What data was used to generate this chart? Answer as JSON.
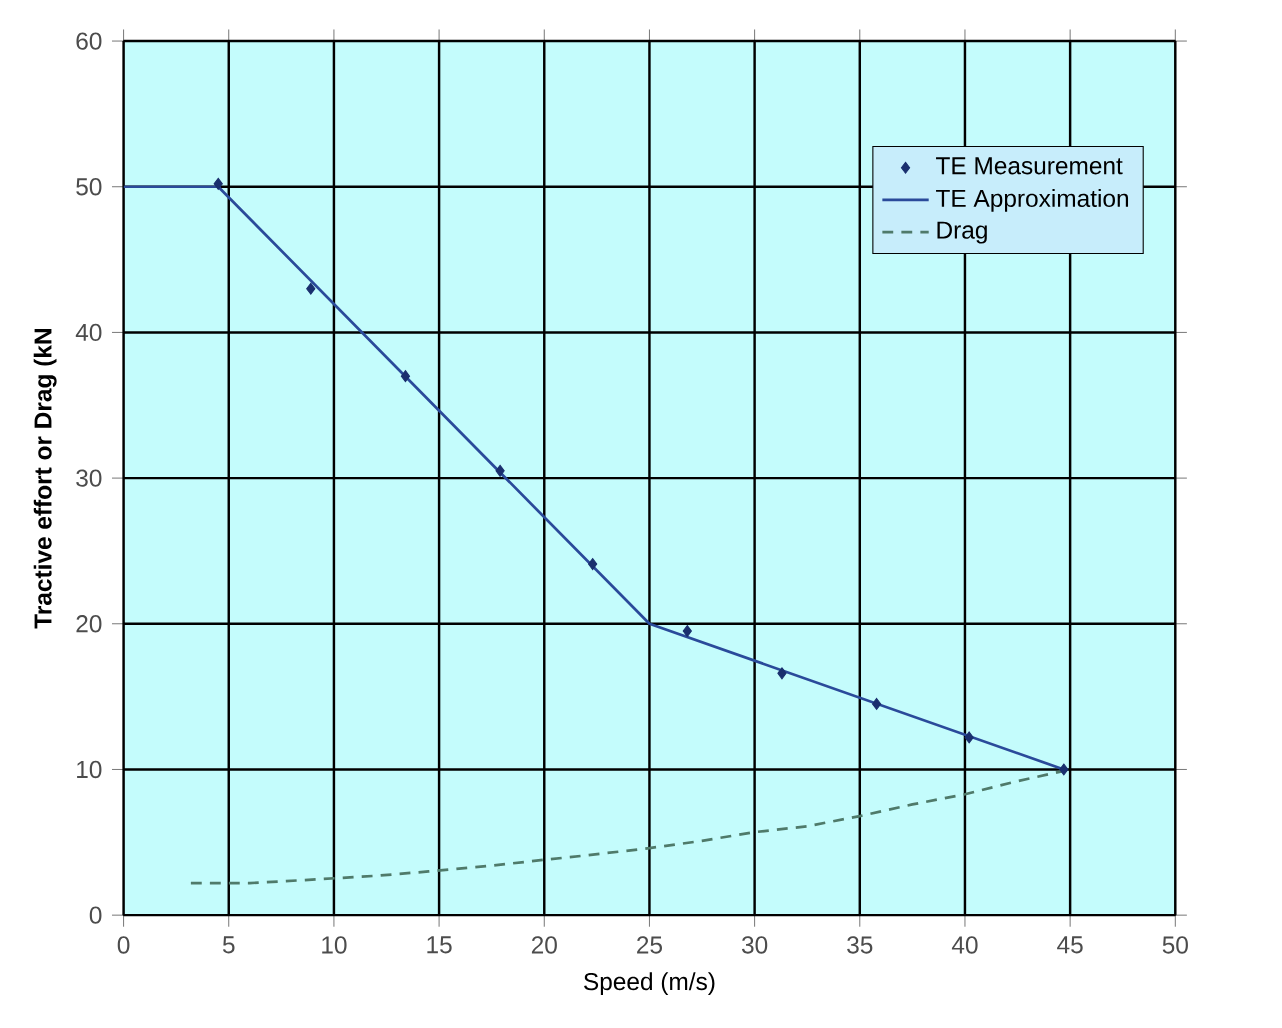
{
  "chart_data": {
    "type": "line",
    "xlabel": "Speed (m/s)",
    "ylabel": "Tractive effort or Drag (kN",
    "xlim": [
      0,
      50
    ],
    "ylim": [
      0,
      60
    ],
    "xticks": [
      0,
      5,
      10,
      15,
      20,
      25,
      30,
      35,
      40,
      45,
      50
    ],
    "yticks": [
      0,
      10,
      20,
      30,
      40,
      50,
      60
    ],
    "grid": true,
    "legend": "top right",
    "series": [
      {
        "name": "TE Measurement",
        "type": "scatter",
        "marker": "diamond",
        "color": "#1a2f6e",
        "x": [
          4.5,
          8.9,
          13.4,
          17.9,
          22.3,
          26.8,
          31.3,
          35.8,
          40.2,
          44.7
        ],
        "values": [
          50.2,
          43,
          37,
          30.5,
          24.1,
          19.5,
          16.6,
          14.5,
          12.2,
          10
        ]
      },
      {
        "name": "TE Approximation",
        "line_style": "solid",
        "color": "#2a4a9a",
        "x": [
          0,
          4.5,
          25,
          44.7
        ],
        "values": [
          50,
          50,
          20,
          10
        ]
      },
      {
        "name": "Drag",
        "line_style": "dashed",
        "color": "#4f7a6a",
        "x": [
          3.2,
          6,
          8.5,
          12,
          14.5,
          17.5,
          20,
          22,
          25,
          27.5,
          30,
          32.5,
          35,
          37.5,
          40,
          42.5,
          44.7
        ],
        "values": [
          2.2,
          2.2,
          2.4,
          2.7,
          3,
          3.4,
          3.8,
          4.1,
          4.6,
          5.1,
          5.7,
          6.1,
          6.8,
          7.6,
          8.3,
          9.2,
          9.9
        ]
      }
    ]
  }
}
